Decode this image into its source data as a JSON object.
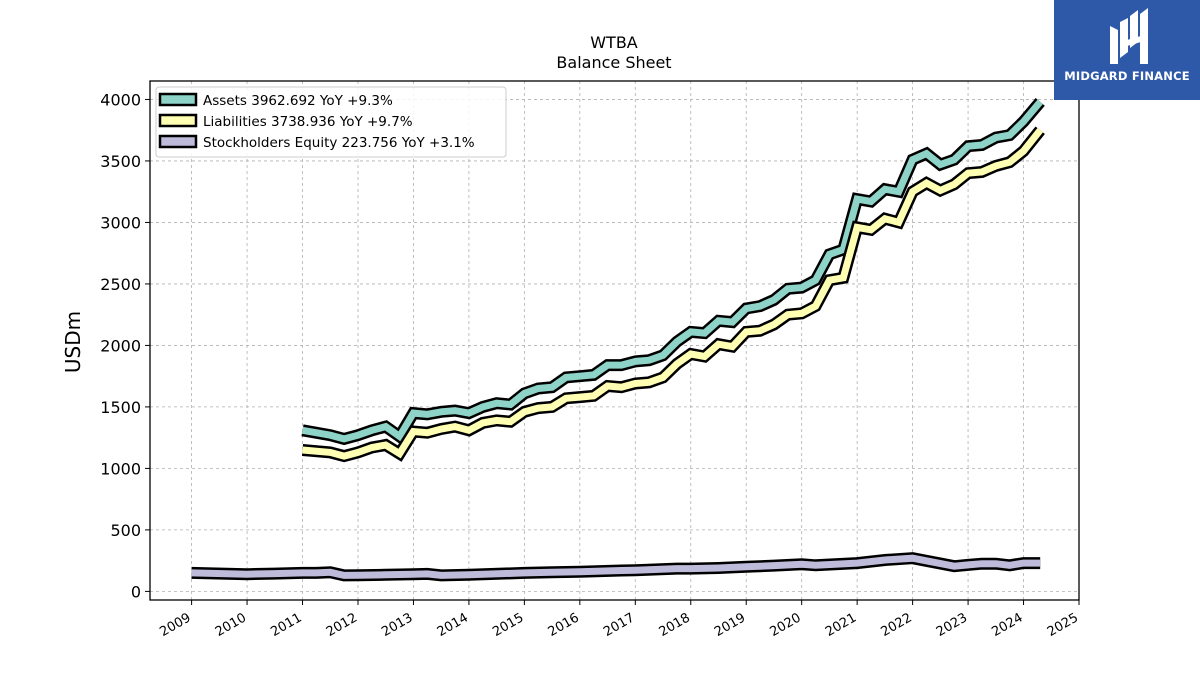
{
  "brand": {
    "name": "MIDGARD FINANCE",
    "bg_color": "#2e58a8",
    "icon": "midgard-logo-icon"
  },
  "chart_data": {
    "type": "line",
    "title": "WTBA",
    "subtitle": "Balance  Sheet",
    "xlabel": "",
    "ylabel": "USDm",
    "xlim": [
      2008.25,
      2025
    ],
    "ylim": [
      -70,
      4150
    ],
    "x_ticks": [
      "2009",
      "2010",
      "2011",
      "2012",
      "2013",
      "2014",
      "2015",
      "2016",
      "2017",
      "2018",
      "2019",
      "2020",
      "2021",
      "2022",
      "2023",
      "2024",
      "2025"
    ],
    "y_ticks": [
      "0",
      "500",
      "1000",
      "1500",
      "2000",
      "2500",
      "3000",
      "3500",
      "4000"
    ],
    "grid": true,
    "legend_position": "top-left",
    "series": [
      {
        "name": "Assets  3962.692 YoY +9.3%",
        "color": "#8dd3c7",
        "points": [
          [
            2011.0,
            1310
          ],
          [
            2011.5,
            1270
          ],
          [
            2011.75,
            1240
          ],
          [
            2012.0,
            1270
          ],
          [
            2012.25,
            1310
          ],
          [
            2012.5,
            1340
          ],
          [
            2012.75,
            1260
          ],
          [
            2013.0,
            1450
          ],
          [
            2013.25,
            1440
          ],
          [
            2013.5,
            1460
          ],
          [
            2013.75,
            1470
          ],
          [
            2014.0,
            1450
          ],
          [
            2014.25,
            1500
          ],
          [
            2014.5,
            1530
          ],
          [
            2014.75,
            1520
          ],
          [
            2015.0,
            1610
          ],
          [
            2015.25,
            1650
          ],
          [
            2015.5,
            1660
          ],
          [
            2015.75,
            1740
          ],
          [
            2016.0,
            1750
          ],
          [
            2016.25,
            1760
          ],
          [
            2016.5,
            1840
          ],
          [
            2016.75,
            1840
          ],
          [
            2017.0,
            1870
          ],
          [
            2017.25,
            1880
          ],
          [
            2017.5,
            1920
          ],
          [
            2017.75,
            2030
          ],
          [
            2018.0,
            2110
          ],
          [
            2018.25,
            2100
          ],
          [
            2018.5,
            2200
          ],
          [
            2018.75,
            2190
          ],
          [
            2019.0,
            2300
          ],
          [
            2019.25,
            2320
          ],
          [
            2019.5,
            2370
          ],
          [
            2019.75,
            2460
          ],
          [
            2020.0,
            2470
          ],
          [
            2020.25,
            2530
          ],
          [
            2020.5,
            2740
          ],
          [
            2020.75,
            2780
          ],
          [
            2021.0,
            3190
          ],
          [
            2021.25,
            3170
          ],
          [
            2021.5,
            3270
          ],
          [
            2021.75,
            3250
          ],
          [
            2022.0,
            3510
          ],
          [
            2022.25,
            3560
          ],
          [
            2022.5,
            3470
          ],
          [
            2022.75,
            3510
          ],
          [
            2023.0,
            3620
          ],
          [
            2023.25,
            3630
          ],
          [
            2023.5,
            3690
          ],
          [
            2023.75,
            3710
          ],
          [
            2024.0,
            3820
          ],
          [
            2024.3,
            3980
          ]
        ]
      },
      {
        "name": "Liabilities  3738.936 YoY +9.7%",
        "color": "#ffffb3",
        "points": [
          [
            2011.0,
            1150
          ],
          [
            2011.5,
            1130
          ],
          [
            2011.75,
            1100
          ],
          [
            2012.0,
            1130
          ],
          [
            2012.25,
            1170
          ],
          [
            2012.5,
            1190
          ],
          [
            2012.75,
            1120
          ],
          [
            2013.0,
            1300
          ],
          [
            2013.25,
            1290
          ],
          [
            2013.5,
            1320
          ],
          [
            2013.75,
            1340
          ],
          [
            2014.0,
            1310
          ],
          [
            2014.25,
            1370
          ],
          [
            2014.5,
            1390
          ],
          [
            2014.75,
            1380
          ],
          [
            2015.0,
            1460
          ],
          [
            2015.25,
            1490
          ],
          [
            2015.5,
            1500
          ],
          [
            2015.75,
            1570
          ],
          [
            2016.0,
            1580
          ],
          [
            2016.25,
            1590
          ],
          [
            2016.5,
            1670
          ],
          [
            2016.75,
            1660
          ],
          [
            2017.0,
            1690
          ],
          [
            2017.25,
            1700
          ],
          [
            2017.5,
            1740
          ],
          [
            2017.75,
            1850
          ],
          [
            2018.0,
            1930
          ],
          [
            2018.25,
            1910
          ],
          [
            2018.5,
            2010
          ],
          [
            2018.75,
            1990
          ],
          [
            2019.0,
            2110
          ],
          [
            2019.25,
            2120
          ],
          [
            2019.5,
            2170
          ],
          [
            2019.75,
            2250
          ],
          [
            2020.0,
            2260
          ],
          [
            2020.25,
            2320
          ],
          [
            2020.5,
            2530
          ],
          [
            2020.75,
            2550
          ],
          [
            2021.0,
            2960
          ],
          [
            2021.25,
            2940
          ],
          [
            2021.5,
            3030
          ],
          [
            2021.75,
            3000
          ],
          [
            2022.0,
            3250
          ],
          [
            2022.25,
            3320
          ],
          [
            2022.5,
            3260
          ],
          [
            2022.75,
            3310
          ],
          [
            2023.0,
            3400
          ],
          [
            2023.25,
            3410
          ],
          [
            2023.5,
            3460
          ],
          [
            2023.75,
            3490
          ],
          [
            2024.0,
            3580
          ],
          [
            2024.3,
            3750
          ]
        ]
      },
      {
        "name": "Stockholders Equity  223.756 YoY +3.1%",
        "color": "#bebada",
        "points": [
          [
            2009.0,
            150
          ],
          [
            2010.0,
            140
          ],
          [
            2010.5,
            145
          ],
          [
            2011.0,
            150
          ],
          [
            2011.25,
            150
          ],
          [
            2011.5,
            155
          ],
          [
            2011.75,
            130
          ],
          [
            2012.0,
            132
          ],
          [
            2012.5,
            135
          ],
          [
            2013.0,
            140
          ],
          [
            2013.25,
            142
          ],
          [
            2013.5,
            130
          ],
          [
            2014.0,
            135
          ],
          [
            2015.0,
            150
          ],
          [
            2015.5,
            155
          ],
          [
            2016.0,
            160
          ],
          [
            2016.75,
            170
          ],
          [
            2017.0,
            172
          ],
          [
            2017.75,
            185
          ],
          [
            2018.0,
            185
          ],
          [
            2018.5,
            190
          ],
          [
            2019.0,
            200
          ],
          [
            2019.5,
            210
          ],
          [
            2020.0,
            220
          ],
          [
            2020.25,
            212
          ],
          [
            2021.0,
            230
          ],
          [
            2021.5,
            255
          ],
          [
            2022.0,
            270
          ],
          [
            2022.75,
            205
          ],
          [
            2023.0,
            215
          ],
          [
            2023.25,
            225
          ],
          [
            2023.5,
            225
          ],
          [
            2023.75,
            212
          ],
          [
            2024.0,
            230
          ],
          [
            2024.3,
            230
          ]
        ]
      }
    ]
  }
}
